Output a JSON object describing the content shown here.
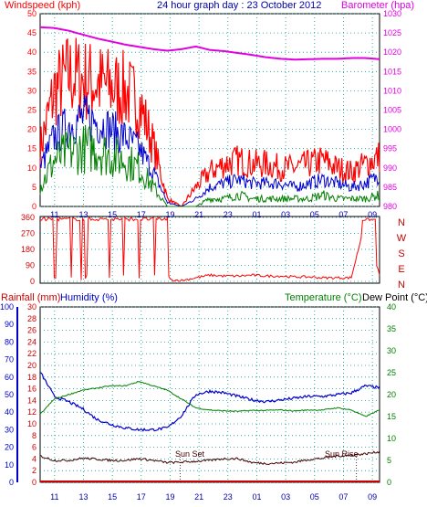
{
  "header": {
    "left_label": "Windspeed (kph)",
    "title": "24 hour graph day : 23 October 2012",
    "right_label": "Barometer (hpa)"
  },
  "wind_panel": {
    "left_axis_ticks": [
      "0",
      "5",
      "10",
      "15",
      "20",
      "25",
      "30",
      "35",
      "40",
      "45",
      "50"
    ],
    "right_axis_ticks": [
      "980",
      "985",
      "990",
      "995",
      "1000",
      "1005",
      "1010",
      "1015",
      "1020",
      "1025",
      "1030"
    ],
    "x_ticks": [
      "11",
      "13",
      "15",
      "17",
      "19",
      "21",
      "23",
      "01",
      "03",
      "05",
      "07",
      "09"
    ],
    "colors": {
      "gust": "#ff0000",
      "average": "#0000cc",
      "minimum": "#008000",
      "barometer": "#e000e0",
      "axis_left": "#ff0000",
      "axis_right": "#e000e0"
    }
  },
  "direction_panel": {
    "axis_ticks": [
      "0",
      "90",
      "180",
      "270",
      "360"
    ],
    "compass_labels": [
      "N",
      "W",
      "S",
      "E",
      "N"
    ],
    "color": "#ff0000"
  },
  "bottom_panel": {
    "rain_label": "Rainfall (mm)",
    "humidity_label": "Humidity (%)",
    "temp_label": "Temperature (°C)",
    "dew_label": "Dew Point (°C)",
    "humidity_ticks": [
      "0",
      "10",
      "20",
      "30",
      "40",
      "50",
      "60",
      "70",
      "80",
      "90",
      "100"
    ],
    "rain_ticks": [
      "0",
      "2",
      "4",
      "6",
      "8",
      "10",
      "12",
      "14",
      "16",
      "18",
      "20",
      "22",
      "24",
      "26",
      "28",
      "30"
    ],
    "temp_ticks": [
      "0",
      "5",
      "10",
      "15",
      "20",
      "25",
      "30",
      "35",
      "40"
    ],
    "x_ticks": [
      "11",
      "13",
      "15",
      "17",
      "19",
      "21",
      "23",
      "01",
      "03",
      "05",
      "07",
      "09"
    ],
    "sunset_label": "Sun Set",
    "sunrise_label": "Sun Rise",
    "colors": {
      "humidity": "#0000cc",
      "temperature": "#008000",
      "dewpoint": "#400000",
      "rain": "#cc0000",
      "axis_temp": "#008000",
      "axis_rain": "#cc0000",
      "axis_hum": "#0000cc"
    }
  },
  "chart_data": [
    {
      "type": "line",
      "title": "24 hour graph day : 23 October 2012",
      "ylabel": "Windspeed (kph)",
      "y2label": "Barometer (hpa)",
      "ylim": [
        0,
        50
      ],
      "y2lim": [
        980,
        1030
      ],
      "x": [
        "10:00",
        "11:00",
        "12:00",
        "13:00",
        "14:00",
        "15:00",
        "16:00",
        "17:00",
        "18:00",
        "19:00",
        "20:00",
        "21:00",
        "22:00",
        "23:00",
        "00:00",
        "01:00",
        "02:00",
        "03:00",
        "04:00",
        "05:00",
        "06:00",
        "07:00",
        "08:00",
        "09:00",
        "09:30"
      ],
      "series": [
        {
          "name": "Gust",
          "axis": "left",
          "values": [
            15,
            30,
            34,
            33,
            32,
            31,
            30,
            27,
            16,
            2,
            0,
            5,
            9,
            11,
            12,
            11,
            11,
            10,
            10,
            11,
            12,
            10,
            9,
            11,
            13
          ]
        },
        {
          "name": "Average",
          "axis": "left",
          "values": [
            10,
            18,
            21,
            23,
            22,
            20,
            18,
            15,
            9,
            1,
            0,
            2,
            5,
            6,
            7,
            6,
            6,
            6,
            5,
            6,
            7,
            6,
            5,
            6,
            8
          ]
        },
        {
          "name": "Minimum",
          "axis": "left",
          "values": [
            5,
            12,
            14,
            15,
            15,
            13,
            12,
            10,
            5,
            0,
            0,
            0,
            2,
            2,
            3,
            2,
            2,
            2,
            2,
            2,
            3,
            2,
            2,
            2,
            3
          ]
        },
        {
          "name": "Barometer",
          "axis": "right",
          "values": [
            1026.5,
            1026.3,
            1025.6,
            1024.6,
            1023.6,
            1022.8,
            1022.0,
            1021.4,
            1020.8,
            1020.4,
            1020.8,
            1021.5,
            1020.6,
            1020.3,
            1019.8,
            1019.3,
            1018.7,
            1018.3,
            1018.1,
            1018.2,
            1018.3,
            1018.3,
            1018.5,
            1018.5,
            1018.2
          ]
        }
      ]
    },
    {
      "type": "line",
      "ylabel": "Wind direction",
      "ylim": [
        0,
        360
      ],
      "x": [
        "10:00",
        "11:00",
        "12:00",
        "13:00",
        "14:00",
        "15:00",
        "16:00",
        "17:00",
        "18:00",
        "19:00",
        "20:00",
        "21:00",
        "22:00",
        "23:00",
        "00:00",
        "01:00",
        "02:00",
        "03:00",
        "04:00",
        "05:00",
        "06:00",
        "07:00",
        "08:00",
        "09:00",
        "09:30"
      ],
      "series": [
        {
          "values": [
            340,
            345,
            345,
            345,
            340,
            345,
            345,
            340,
            345,
            10,
            5,
            20,
            35,
            30,
            30,
            35,
            30,
            30,
            25,
            25,
            20,
            20,
            20,
            340,
            30
          ]
        }
      ]
    },
    {
      "type": "line",
      "x": [
        "10:00",
        "11:00",
        "12:00",
        "13:00",
        "14:00",
        "15:00",
        "16:00",
        "17:00",
        "18:00",
        "19:00",
        "20:00",
        "21:00",
        "22:00",
        "23:00",
        "00:00",
        "01:00",
        "02:00",
        "03:00",
        "04:00",
        "05:00",
        "06:00",
        "07:00",
        "08:00",
        "09:00",
        "09:30"
      ],
      "ylim": [
        0,
        100
      ],
      "y2lim": [
        0,
        40
      ],
      "series": [
        {
          "name": "Humidity (%)",
          "axis": "hum",
          "values": [
            63,
            49,
            46,
            42,
            36,
            33,
            31,
            30,
            30,
            31,
            38,
            50,
            52,
            51,
            49,
            47,
            46,
            47,
            48,
            49,
            49,
            50,
            51,
            55,
            54
          ]
        },
        {
          "name": "Temperature (°C)",
          "axis": "temp",
          "values": [
            15.5,
            19,
            20,
            21,
            21.5,
            22,
            22,
            23,
            22,
            21,
            19,
            17,
            16.5,
            16.3,
            16.2,
            16.4,
            16.4,
            16.5,
            16.3,
            16.5,
            16.5,
            17,
            16.5,
            15,
            16.5
          ]
        },
        {
          "name": "Dew Point (°C)",
          "axis": "temp",
          "values": [
            6,
            5,
            5,
            5.5,
            5.3,
            5,
            5,
            5.4,
            5,
            4.5,
            4.6,
            4.8,
            5,
            5.4,
            5.4,
            4.5,
            4.3,
            4.4,
            4.6,
            5.2,
            5.5,
            6,
            6.2,
            6.5,
            7
          ]
        },
        {
          "name": "Rainfall (mm)",
          "axis": "rain",
          "values": [
            0,
            0,
            0,
            0,
            0,
            0,
            0,
            0,
            0,
            0,
            0,
            0,
            0,
            0,
            0,
            0,
            0,
            0,
            0,
            0,
            0,
            0,
            0,
            0,
            0
          ]
        }
      ]
    }
  ]
}
